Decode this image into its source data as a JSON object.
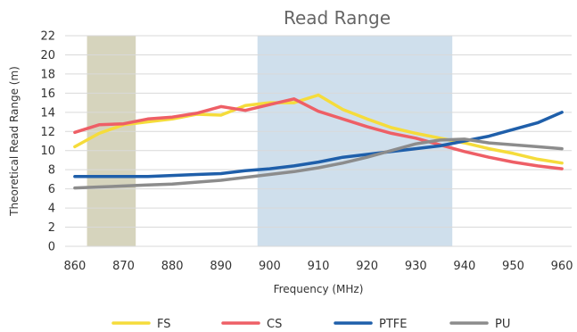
{
  "chart_data": {
    "type": "line",
    "title": "Read Range",
    "xlabel": "Frequency (MHz)",
    "ylabel": "Theoretical Read Range (m)",
    "xlim": [
      858,
      962
    ],
    "ylim": [
      0,
      22
    ],
    "x_ticks": [
      860,
      870,
      880,
      890,
      900,
      910,
      920,
      930,
      940,
      950,
      960
    ],
    "y_ticks": [
      0,
      2,
      4,
      6,
      8,
      10,
      12,
      14,
      16,
      18,
      20,
      22
    ],
    "grid": true,
    "legend_position": "bottom",
    "shaded_bands": [
      {
        "x_start": 862.5,
        "x_end": 872.5,
        "color": "#d6d4bd"
      },
      {
        "x_start": 897.5,
        "x_end": 937.5,
        "color": "#cfdfec"
      }
    ],
    "series": [
      {
        "name": "FS",
        "color": "#f5dc3b",
        "x": [
          860,
          865,
          870,
          875,
          880,
          885,
          890,
          895,
          900,
          905,
          910,
          915,
          920,
          925,
          930,
          935,
          940,
          945,
          950,
          955,
          960
        ],
        "y": [
          10.4,
          11.8,
          12.7,
          13.0,
          13.3,
          13.8,
          13.7,
          14.7,
          15.0,
          15.0,
          15.8,
          14.3,
          13.3,
          12.4,
          11.8,
          11.3,
          10.8,
          10.2,
          9.7,
          9.1,
          8.7
        ]
      },
      {
        "name": "CS",
        "color": "#ee5f66",
        "x": [
          860,
          865,
          870,
          875,
          880,
          885,
          890,
          895,
          900,
          905,
          910,
          915,
          920,
          925,
          930,
          935,
          940,
          945,
          950,
          955,
          960
        ],
        "y": [
          11.9,
          12.7,
          12.8,
          13.3,
          13.5,
          13.9,
          14.6,
          14.2,
          14.8,
          15.4,
          14.1,
          13.3,
          12.5,
          11.8,
          11.3,
          10.6,
          9.9,
          9.3,
          8.8,
          8.4,
          8.1
        ]
      },
      {
        "name": "PTFE",
        "color": "#1f5faa",
        "x": [
          860,
          865,
          870,
          875,
          880,
          885,
          890,
          895,
          900,
          905,
          910,
          915,
          920,
          925,
          930,
          935,
          940,
          945,
          950,
          955,
          960
        ],
        "y": [
          7.3,
          7.3,
          7.3,
          7.3,
          7.4,
          7.5,
          7.6,
          7.9,
          8.1,
          8.4,
          8.8,
          9.3,
          9.6,
          9.9,
          10.2,
          10.5,
          11.0,
          11.5,
          12.2,
          12.9,
          14.0
        ]
      },
      {
        "name": "PU",
        "color": "#8c8c8c",
        "x": [
          860,
          865,
          870,
          875,
          880,
          885,
          890,
          895,
          900,
          905,
          910,
          915,
          920,
          925,
          930,
          935,
          940,
          945,
          950,
          955,
          960
        ],
        "y": [
          6.1,
          6.2,
          6.3,
          6.4,
          6.5,
          6.7,
          6.9,
          7.2,
          7.5,
          7.8,
          8.2,
          8.7,
          9.3,
          10.0,
          10.7,
          11.1,
          11.2,
          10.8,
          10.6,
          10.4,
          10.2
        ]
      }
    ]
  }
}
